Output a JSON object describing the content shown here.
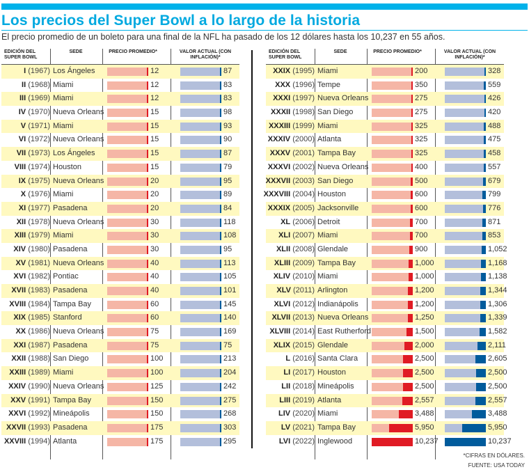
{
  "title": "Los precios del Super Bowl a lo largo de la historia",
  "subtitle": "El precio promedio de un boleto para una final de la NFL ha pasado de los 12 dólares hasta los 10,237 en 55 años.",
  "headers": {
    "edition": "Edición del Super Bowl",
    "venue": "Sede",
    "price": "Precio promedio*",
    "value": "Valor actual (con inflación)*"
  },
  "colors": {
    "accent": "#00a9e0",
    "price_light": "#f5b6a6",
    "price_dark": "#e01b24",
    "value_light": "#b3bfdb",
    "value_dark": "#005b9c",
    "row_highlight": "#fff9c0"
  },
  "rows": [
    {
      "edition": "I",
      "year": "(1967)",
      "venue": "Los Ángeles",
      "price": "12",
      "value": "87"
    },
    {
      "edition": "II",
      "year": "(1968)",
      "venue": "Miami",
      "price": "12",
      "value": "83"
    },
    {
      "edition": "III",
      "year": "(1969)",
      "venue": "Miami",
      "price": "12",
      "value": "83"
    },
    {
      "edition": "IV",
      "year": "(1970)",
      "venue": "Nueva Orleans",
      "price": "15",
      "value": "98"
    },
    {
      "edition": "V",
      "year": "(1971)",
      "venue": "Miami",
      "price": "15",
      "value": "93"
    },
    {
      "edition": "VI",
      "year": "(1972)",
      "venue": "Nueva Orleans",
      "price": "15",
      "value": "90"
    },
    {
      "edition": "VII",
      "year": "(1973)",
      "venue": "Los Ángeles",
      "price": "15",
      "value": "87"
    },
    {
      "edition": "VIII",
      "year": "(1974)",
      "venue": "Houston",
      "price": "15",
      "value": "79"
    },
    {
      "edition": "IX",
      "year": "(1975)",
      "venue": "Nueva Orleans",
      "price": "20",
      "value": "95"
    },
    {
      "edition": "X",
      "year": "(1976)",
      "venue": "Miami",
      "price": "20",
      "value": "89"
    },
    {
      "edition": "XI",
      "year": "(1977)",
      "venue": "Pasadena",
      "price": "20",
      "value": "84"
    },
    {
      "edition": "XII",
      "year": "(1978)",
      "venue": "Nueva Orleans",
      "price": "30",
      "value": "118"
    },
    {
      "edition": "XIII",
      "year": "(1979)",
      "venue": "Miami",
      "price": "30",
      "value": "108"
    },
    {
      "edition": "XIV",
      "year": "(1980)",
      "venue": "Pasadena",
      "price": "30",
      "value": "95"
    },
    {
      "edition": "XV",
      "year": "(1981)",
      "venue": "Nueva Orleans",
      "price": "40",
      "value": "113"
    },
    {
      "edition": "XVI",
      "year": "(1982)",
      "venue": "Pontiac",
      "price": "40",
      "value": "105"
    },
    {
      "edition": "XVII",
      "year": "(1983)",
      "venue": "Pasadena",
      "price": "40",
      "value": "101"
    },
    {
      "edition": "XVIII",
      "year": "(1984)",
      "venue": "Tampa Bay",
      "price": "60",
      "value": "145"
    },
    {
      "edition": "XIX",
      "year": "(1985)",
      "venue": "Stanford",
      "price": "60",
      "value": "140"
    },
    {
      "edition": "XX",
      "year": "(1986)",
      "venue": "Nueva Orleans",
      "price": "75",
      "value": "169"
    },
    {
      "edition": "XXI",
      "year": "(1987)",
      "venue": "Pasadena",
      "price": "75",
      "value": "75"
    },
    {
      "edition": "XXII",
      "year": "(1988)",
      "venue": "San Diego",
      "price": "100",
      "value": "213"
    },
    {
      "edition": "XXIII",
      "year": "(1989)",
      "venue": "Miami",
      "price": "100",
      "value": "204"
    },
    {
      "edition": "XXIV",
      "year": "(1990)",
      "venue": "Nueva Orleans",
      "price": "125",
      "value": "242"
    },
    {
      "edition": "XXV",
      "year": "(1991)",
      "venue": "Tampa Bay",
      "price": "150",
      "value": "275"
    },
    {
      "edition": "XXVI",
      "year": "(1992)",
      "venue": "Mineápolis",
      "price": "150",
      "value": "268"
    },
    {
      "edition": "XXVII",
      "year": "(1993)",
      "venue": "Pasadena",
      "price": "175",
      "value": "303"
    },
    {
      "edition": "XXVIII",
      "year": "(1994)",
      "venue": "Atlanta",
      "price": "175",
      "value": "295"
    },
    {
      "edition": "XXIX",
      "year": "(1995)",
      "venue": "Miami",
      "price": "200",
      "value": "328"
    },
    {
      "edition": "XXX",
      "year": "(1996)",
      "venue": "Tempe",
      "price": "350",
      "value": "559"
    },
    {
      "edition": "XXXI",
      "year": "(1997)",
      "venue": "Nueva Orleans",
      "price": "275",
      "value": "426"
    },
    {
      "edition": "XXXII",
      "year": "(1998)",
      "venue": "San Diego",
      "price": "275",
      "value": "420"
    },
    {
      "edition": "XXXIII",
      "year": "(1999)",
      "venue": "Miami",
      "price": "325",
      "value": "488"
    },
    {
      "edition": "XXXIV",
      "year": "(2000)",
      "venue": "Atlanta",
      "price": "325",
      "value": "475"
    },
    {
      "edition": "XXXV",
      "year": "(2001)",
      "venue": "Tampa Bay",
      "price": "325",
      "value": "458"
    },
    {
      "edition": "XXXVI",
      "year": "(2002)",
      "venue": "Nueva Orleans",
      "price": "400",
      "value": "557"
    },
    {
      "edition": "XXXVII",
      "year": "(2003)",
      "venue": "San Diego",
      "price": "500",
      "value": "679"
    },
    {
      "edition": "XXXVIII",
      "year": "(2004)",
      "venue": "Houston",
      "price": "600",
      "value": "799"
    },
    {
      "edition": "XXXIX",
      "year": "(2005)",
      "venue": "Jacksonville",
      "price": "600",
      "value": "776"
    },
    {
      "edition": "XL",
      "year": "(2006)",
      "venue": "Detroit",
      "price": "700",
      "value": "871"
    },
    {
      "edition": "XLI",
      "year": "(2007)",
      "venue": "Miami",
      "price": "700",
      "value": "853"
    },
    {
      "edition": "XLII",
      "year": "(2008)",
      "venue": "Glendale",
      "price": "900",
      "value": "1,052"
    },
    {
      "edition": "XLIII",
      "year": "(2009)",
      "venue": "Tampa Bay",
      "price": "1,000",
      "value": "1,168"
    },
    {
      "edition": "XLIV",
      "year": "(2010)",
      "venue": "Miami",
      "price": "1,000",
      "value": "1,138"
    },
    {
      "edition": "XLV",
      "year": "(2011)",
      "venue": "Arlington",
      "price": "1,200",
      "value": "1,344"
    },
    {
      "edition": "XLVI",
      "year": "(2012)",
      "venue": "Indianápolis",
      "price": "1,200",
      "value": "1,306"
    },
    {
      "edition": "XLVII",
      "year": "(2013)",
      "venue": "Nueva Orleans",
      "price": "1,250",
      "value": "1,339"
    },
    {
      "edition": "XLVIII",
      "year": "(2014)",
      "venue": "East Rutherford",
      "price": "1,500",
      "value": "1,582"
    },
    {
      "edition": "XLIX",
      "year": "(2015)",
      "venue": "Glendale",
      "price": "2,000",
      "value": "2,111"
    },
    {
      "edition": "L",
      "year": "(2016)",
      "venue": "Santa Clara",
      "price": "2,500",
      "value": "2,605"
    },
    {
      "edition": "LI",
      "year": "(2017)",
      "venue": "Houston",
      "price": "2,500",
      "value": "2,500"
    },
    {
      "edition": "LII",
      "year": "(2018)",
      "venue": "Mineápolis",
      "price": "2,500",
      "value": "2,500"
    },
    {
      "edition": "LIII",
      "year": "(2019)",
      "venue": "Atlanta",
      "price": "2,557",
      "value": "2,557"
    },
    {
      "edition": "LIV",
      "year": "(2020)",
      "venue": "Miami",
      "price": "3,488",
      "value": "3,488"
    },
    {
      "edition": "LV",
      "year": "(2021)",
      "venue": "Tampa Bay",
      "price": "5,950",
      "value": "5,950"
    },
    {
      "edition": "LVI",
      "year": "(2022)",
      "venue": "Inglewood",
      "price": "10,237",
      "value": "10,237"
    }
  ],
  "footnote": "*Cifras en dólares.",
  "source": "Fuente: USA Today"
}
